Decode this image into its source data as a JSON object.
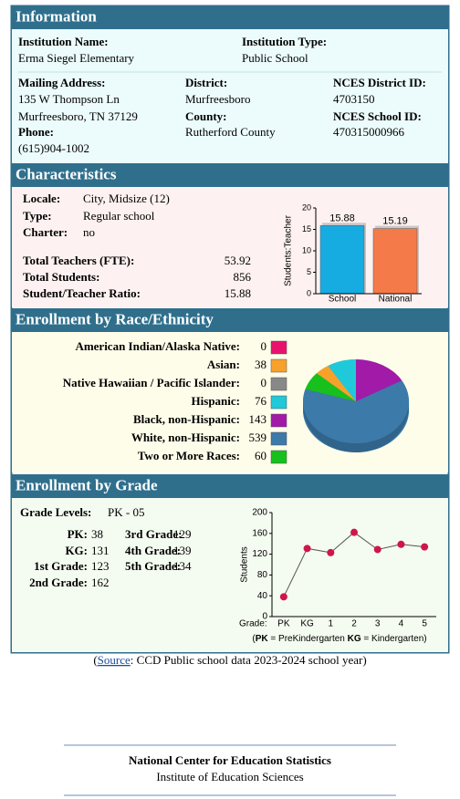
{
  "information": {
    "title": "Information",
    "institution_name": {
      "label": "Institution Name:",
      "value": "Erma Siegel Elementary"
    },
    "institution_type": {
      "label": "Institution Type:",
      "value": "Public School"
    },
    "mailing_address": {
      "label": "Mailing Address:",
      "lines": [
        "135 W Thompson Ln",
        "Murfreesboro, TN 37129"
      ]
    },
    "phone": {
      "label": "Phone:",
      "value": "(615)904-1002"
    },
    "district": {
      "label": "District:",
      "value": "Murfreesboro"
    },
    "county": {
      "label": "County:",
      "value": "Rutherford County"
    },
    "nces_district_id": {
      "label": "NCES District ID:",
      "value": "4703150"
    },
    "nces_school_id": {
      "label": "NCES School ID:",
      "value": "470315000966"
    }
  },
  "characteristics": {
    "title": "Characteristics",
    "locale": {
      "label": "Locale:",
      "value": "City, Midsize (12)"
    },
    "type": {
      "label": "Type:",
      "value": "Regular school"
    },
    "charter": {
      "label": "Charter:",
      "value": "no"
    },
    "total_teachers": {
      "label": "Total Teachers (FTE):",
      "value": 53.92
    },
    "total_students": {
      "label": "Total Students:",
      "value": 856
    },
    "ratio": {
      "label": "Student/Teacher Ratio:",
      "value": 15.88
    },
    "chart": {
      "type": "bar",
      "y_label": "Students:Teacher",
      "categories": [
        "School",
        "National"
      ],
      "values": [
        15.88,
        15.19
      ],
      "colors": [
        "#16ace2",
        "#f57a4a"
      ],
      "ylim": [
        0,
        20
      ],
      "yticks": [
        0,
        5,
        10,
        15,
        20
      ]
    }
  },
  "race": {
    "title": "Enrollment by Race/Ethnicity",
    "chart": {
      "type": "pie",
      "categories": [
        "American Indian/Alaska Native:",
        "Asian:",
        "Native Hawaiian / Pacific Islander:",
        "Hispanic:",
        "Black, non-Hispanic:",
        "White, non-Hispanic:",
        "Two or More Races:"
      ],
      "values": [
        0,
        38,
        0,
        76,
        143,
        539,
        60
      ],
      "colors": [
        "#e8126d",
        "#f7a12b",
        "#888888",
        "#1fc9d9",
        "#a11aa8",
        "#3c7aa9",
        "#17c01d"
      ]
    }
  },
  "grade": {
    "title": "Enrollment by Grade",
    "grade_levels": {
      "label": "Grade Levels:",
      "value": "PK - 05"
    },
    "count_labels": [
      "PK:",
      "KG:",
      "1st Grade:",
      "2nd Grade:",
      "3rd Grade:",
      "4th Grade:",
      "5th Grade:"
    ],
    "chart": {
      "type": "line",
      "x_label": "Grade:",
      "y_label": "Students",
      "categories": [
        "PK",
        "KG",
        "1",
        "2",
        "3",
        "4",
        "5"
      ],
      "values": [
        38,
        131,
        123,
        162,
        129,
        139,
        134
      ],
      "color": "#cf164c",
      "ylim": [
        0,
        200
      ],
      "yticks": [
        0,
        40,
        80,
        120,
        160,
        200
      ],
      "grid": false,
      "note": [
        "(",
        "PK",
        " = PreKindergarten  ",
        "KG",
        " = Kindergarten)"
      ]
    }
  },
  "source": [
    "(",
    "Source",
    ": CCD Public school data 2023-2024 school year)"
  ],
  "footer": {
    "line1": "National Center for Education Statistics",
    "line2": "Institute of Education Sciences"
  }
}
